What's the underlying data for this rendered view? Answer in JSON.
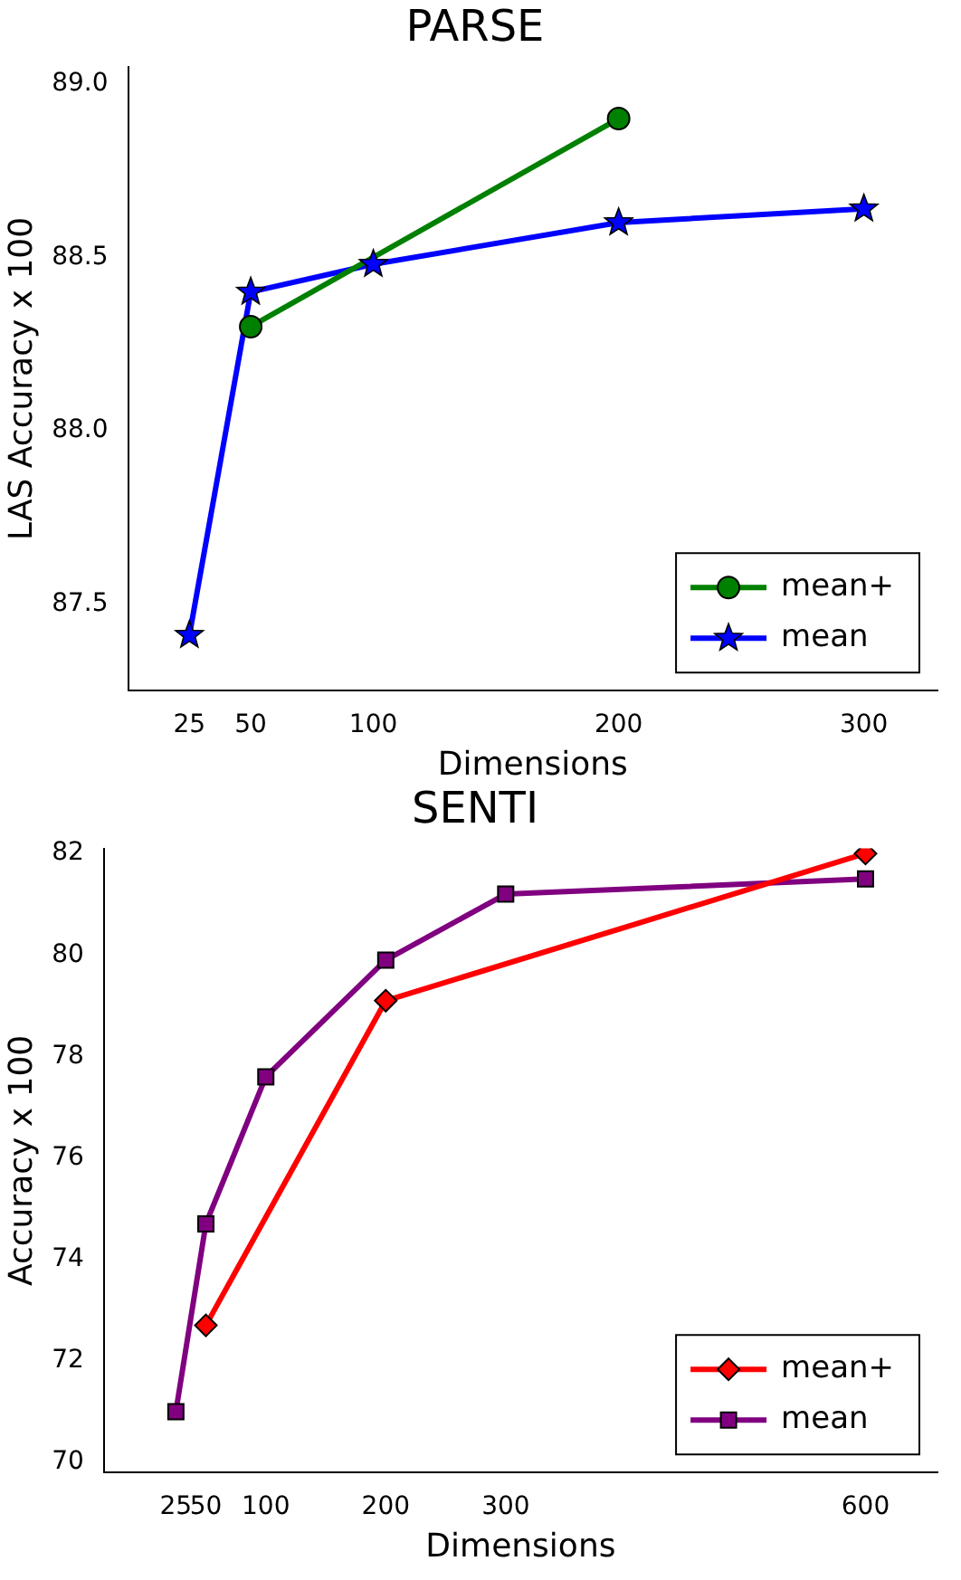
{
  "chart_data": [
    {
      "type": "line",
      "title": "PARSE",
      "xlabel": "Dimensions",
      "ylabel": "LAS Accuracy x 100",
      "xlim": [
        0,
        330
      ],
      "xticks": [
        25,
        50,
        100,
        200,
        300
      ],
      "ylim": [
        87.25,
        89.05
      ],
      "yticks": [
        {
          "value": 87.5,
          "label": "87.5"
        },
        {
          "value": 88.0,
          "label": "88.0"
        },
        {
          "value": 88.5,
          "label": "88.5"
        },
        {
          "value": 89.0,
          "label": "89.0"
        }
      ],
      "legend": "bottom right",
      "grid": false,
      "series": [
        {
          "name": "mean+",
          "color": "#008000",
          "marker": "circle",
          "x": [
            50,
            200
          ],
          "values": [
            88.3,
            88.9
          ]
        },
        {
          "name": "mean",
          "color": "#0000ff",
          "marker": "star",
          "x": [
            25,
            50,
            100,
            200,
            300
          ],
          "values": [
            87.41,
            88.4,
            88.48,
            88.6,
            88.64
          ]
        }
      ]
    },
    {
      "type": "line",
      "title": "SENTI",
      "xlabel": "Dimensions",
      "ylabel": "Accuracy x 100",
      "xlim": [
        -35,
        660
      ],
      "xticks": [
        25,
        50,
        100,
        200,
        300,
        600
      ],
      "ylim": [
        69.8,
        82.1
      ],
      "yticks": [
        70,
        72,
        74,
        76,
        78,
        80,
        82
      ],
      "legend": "bottom right",
      "grid": false,
      "series": [
        {
          "name": "mean+",
          "color": "#ff0000",
          "marker": "diamond",
          "x": [
            50,
            200,
            600
          ],
          "values": [
            72.7,
            79.1,
            82.0
          ]
        },
        {
          "name": "mean",
          "color": "#800080",
          "marker": "square",
          "x": [
            25,
            50,
            100,
            200,
            300,
            600
          ],
          "values": [
            71.0,
            74.7,
            77.6,
            79.9,
            81.2,
            81.5
          ]
        }
      ]
    }
  ]
}
